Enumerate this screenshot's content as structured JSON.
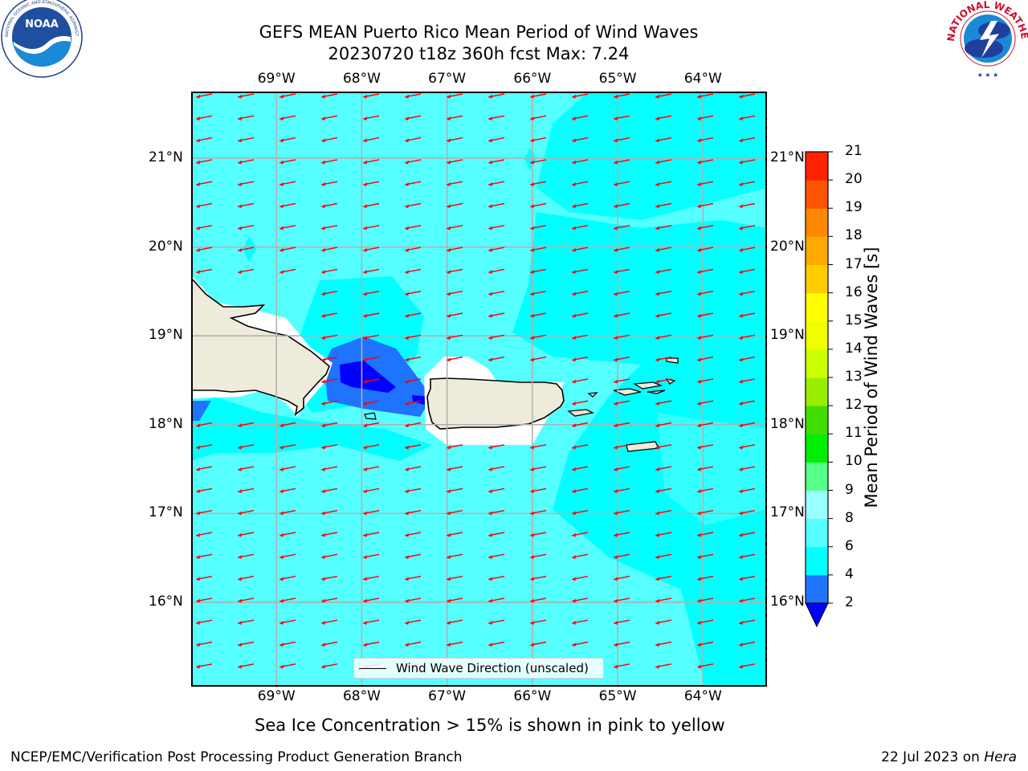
{
  "title": {
    "line1": "GEFS MEAN Puerto Rico Mean Period of Wind Waves",
    "line2": "20230720 t18z 360h fcst   Max: 7.24"
  },
  "logos": {
    "left": {
      "name": "noaa-logo",
      "text": "NOAA",
      "ring_text": "NATIONAL OCEANIC AND ATMOSPHERIC ADMINISTRATION · U.S. DEPARTMENT OF COMMERCE"
    },
    "right": {
      "name": "nws-logo",
      "ring_text": "NATIONAL WEATHER SERVICE"
    }
  },
  "map": {
    "lon_labels": [
      "69°W",
      "68°W",
      "67°W",
      "66°W",
      "65°W",
      "64°W"
    ],
    "lat_labels": [
      "21°N",
      "20°N",
      "19°N",
      "18°N",
      "17°N",
      "16°N"
    ],
    "lon_range": [
      -70.0,
      -63.25
    ],
    "lat_range": [
      15.05,
      21.75
    ],
    "grid": true,
    "ocean_color": "#55ffff",
    "land_color": "#efebdb",
    "arrow_color": "#ff0000",
    "arrow_direction": "toward west-southwest",
    "legend_text": "Wind Wave Direction (unscaled)"
  },
  "colorbar": {
    "label": "Mean Period of Wind Waves [s]",
    "ticks": [
      "2",
      "4",
      "6",
      "8",
      "9",
      "10",
      "11",
      "12",
      "13",
      "14",
      "15",
      "16",
      "17",
      "18",
      "19",
      "20",
      "21"
    ],
    "colors": [
      "#0000ff",
      "#1e73ff",
      "#00ffff",
      "#55ffff",
      "#99ffff",
      "#55ff88",
      "#00ee00",
      "#44dd00",
      "#99ee00",
      "#ccff00",
      "#eeff00",
      "#ffff00",
      "#ffcc00",
      "#ffaa00",
      "#ff8800",
      "#ff5500",
      "#ff2200",
      "#ff0000"
    ],
    "under_color": "#0000ff"
  },
  "caption": "Sea Ice Concentration > 15% is shown in pink to yellow",
  "footer": {
    "left": "NCEP/EMC/Verification Post Processing Product Generation Branch",
    "right_date": "22 Jul 2023 on ",
    "right_machine": "Hera"
  }
}
